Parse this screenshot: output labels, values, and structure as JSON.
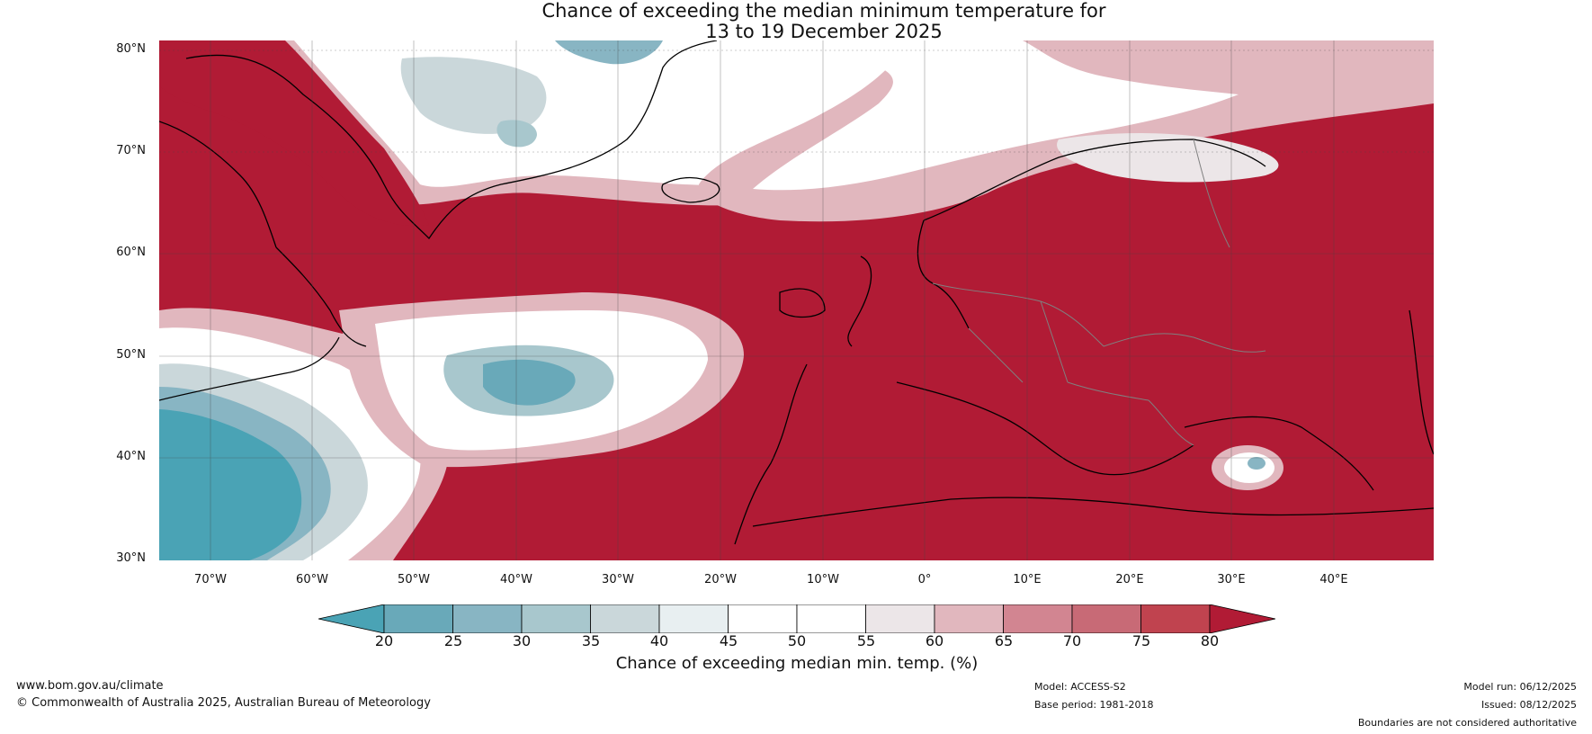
{
  "title": {
    "line1": "Chance of exceeding the median minimum temperature for",
    "line2": "13 to 19 December 2025"
  },
  "map": {
    "latitude_labels": [
      "80°N",
      "70°N",
      "60°N",
      "50°N",
      "40°N",
      "30°N"
    ],
    "longitude_labels": [
      "70°W",
      "60°W",
      "50°W",
      "40°W",
      "30°W",
      "20°W",
      "10°W",
      "0°",
      "10°E",
      "20°E",
      "30°E",
      "40°E"
    ],
    "colors": {
      "high": "#b11b35",
      "ocean_low": "#4aa3b5",
      "coast": "#000000",
      "border": "#808080"
    }
  },
  "colorbar": {
    "ticks": [
      "20",
      "25",
      "30",
      "35",
      "40",
      "45",
      "50",
      "55",
      "60",
      "65",
      "70",
      "75",
      "80"
    ],
    "colors": [
      "#4aa3b5",
      "#69a9b9",
      "#88b5c3",
      "#a8c7cd",
      "#cad7da",
      "#e8eff1",
      "#ffffff",
      "#ffffff",
      "#ece6e8",
      "#e1b7be",
      "#d28591",
      "#c86a76",
      "#c0434f",
      "#b11b35"
    ],
    "label": "Chance of exceeding median min. temp. (%)"
  },
  "footer": {
    "url": "www.bom.gov.au/climate",
    "copyright": "© Commonwealth of Australia 2025, Australian Bureau of Meteorology",
    "model": "Model: ACCESS-S2",
    "base_period": "Base period: 1981-2018",
    "model_run": "Model run: 06/12/2025",
    "issued": "Issued: 08/12/2025",
    "disclaimer": "Boundaries are not considered authoritative"
  }
}
